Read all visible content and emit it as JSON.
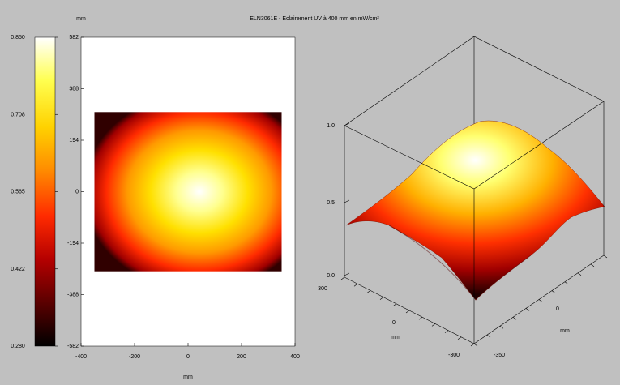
{
  "colors": {
    "background": "#c0c0c0",
    "plot_background": "#ffffff",
    "colormap": [
      "#000000",
      "#5a0000",
      "#b40000",
      "#ff2a00",
      "#ff8c00",
      "#ffd200",
      "#ffff50",
      "#ffffff"
    ]
  },
  "chart_data": [
    {
      "type": "heatmap",
      "role": "colorbar",
      "colormap": "hot",
      "tick_labels": [
        "0.850",
        "0.708",
        "0.565",
        "0.422",
        "0.280"
      ],
      "range": [
        0.28,
        0.85
      ]
    },
    {
      "type": "heatmap",
      "role": "top-view",
      "title_label": "mm",
      "xlabel": "mm",
      "ylabel": "mm",
      "xlim": [
        -400,
        400
      ],
      "ylim": [
        -582,
        582
      ],
      "x_tick_labels": [
        "-400",
        "-200",
        "0",
        "200",
        "400"
      ],
      "y_tick_labels": [
        "582",
        "388",
        "194",
        "0",
        "-194",
        "-388",
        "-582"
      ],
      "data_extent": {
        "x": [
          -350,
          350
        ],
        "y": [
          -300,
          300
        ]
      },
      "peak": {
        "x": 40,
        "y": 0,
        "value": 0.85
      },
      "value_range": [
        0.28,
        0.85
      ]
    },
    {
      "type": "surface",
      "role": "3d-view",
      "title": "ELN3061E - Eclairement UV à 400 mm en mW/cm²",
      "xlabel": "mm",
      "ylabel": "mm",
      "zlim": [
        0,
        1
      ],
      "z_tick_labels": [
        "1.0",
        "0.5",
        "0.0"
      ],
      "x_tick_labels": [
        "300",
        "0",
        "-300"
      ],
      "y_tick_labels": [
        "0",
        "-350"
      ],
      "peak_value": 0.85,
      "min_value": 0.28
    }
  ]
}
